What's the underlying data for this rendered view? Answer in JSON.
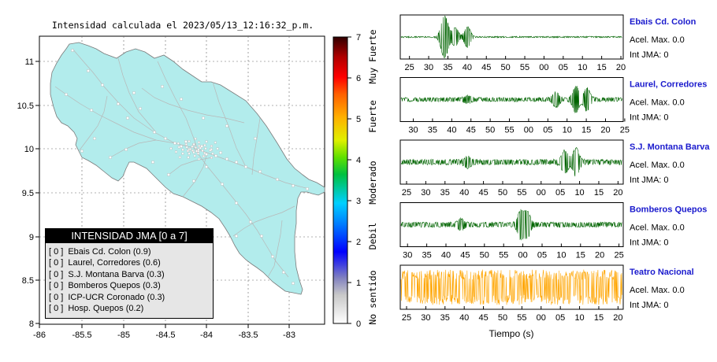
{
  "map": {
    "title": "Intensidad calculada el 2023/05/13_12:16:32_p.m.",
    "lon_ticks": [
      "-86",
      "-85.5",
      "-85",
      "-84.5",
      "-84",
      "-83.5",
      "-83"
    ],
    "lat_ticks": [
      "11",
      "10.5",
      "10",
      "9.5",
      "9",
      "8.5",
      "8"
    ],
    "land_color": "#b2ecec",
    "road_color": "#b8b8b8"
  },
  "legend": {
    "title": "INTENSIDAD JMA [0 a 7]",
    "items": [
      {
        "badge": "[ 0 ]",
        "label": "Ebais Cd. Colon (0.9)"
      },
      {
        "badge": "[ 0 ]",
        "label": "Laurel, Corredores (0.6)"
      },
      {
        "badge": "[ 0 ]",
        "label": "S.J. Montana Barva (0.3)"
      },
      {
        "badge": "[ 0 ]",
        "label": "Bomberos Quepos (0.3)"
      },
      {
        "badge": "[ 0 ]",
        "label": "ICP-UCR Coronado (0.3)"
      },
      {
        "badge": "[ 0 ]",
        "label": "Hosp. Quepos (0.2)"
      }
    ]
  },
  "scale": {
    "ticks": [
      "0",
      "1",
      "2",
      "3",
      "4",
      "5",
      "6",
      "7"
    ],
    "words": [
      "No sentido",
      "Debil",
      "Moderado",
      "Fuerte",
      "Muy Fuerte"
    ]
  },
  "stations": [
    {
      "name": "Ebais Cd. Colon",
      "acel": "Acel. Max. 0.0",
      "int": "Int JMA: 0",
      "ticks": [
        "25",
        "30",
        "35",
        "40",
        "45",
        "50",
        "55",
        "00",
        "05",
        "10",
        "15",
        "20"
      ],
      "first_offset": 0.15,
      "color": "#006400",
      "bursts": [
        [
          0.19,
          0.6
        ],
        [
          0.205,
          0.5
        ],
        [
          0.245,
          0.4
        ],
        [
          0.3,
          0.45
        ]
      ],
      "noise": 0.02,
      "base": 0.012
    },
    {
      "name": "Laurel, Corredores",
      "acel": "Acel. Max. 0.0",
      "int": "Int JMA: 0",
      "ticks": [
        "30",
        "35",
        "40",
        "45",
        "50",
        "55",
        "00",
        "05",
        "10",
        "15",
        "20",
        "25"
      ],
      "first_offset": 0.35,
      "color": "#006400",
      "bursts": [
        [
          0.3,
          0.12
        ],
        [
          0.7,
          0.28
        ],
        [
          0.79,
          0.55
        ],
        [
          0.84,
          0.45
        ]
      ],
      "noise": 0.06,
      "base": 0.04
    },
    {
      "name": "S.J. Montana Barva",
      "acel": "Acel. Max. 0.0",
      "int": "Int JMA: 0",
      "ticks": [
        "25",
        "30",
        "35",
        "40",
        "45",
        "50",
        "55",
        "00",
        "05",
        "10",
        "15",
        "20"
      ],
      "first_offset": 0.0,
      "color": "#006400",
      "bursts": [
        [
          0.3,
          0.18
        ],
        [
          0.74,
          0.45
        ],
        [
          0.79,
          0.55
        ]
      ],
      "noise": 0.08,
      "base": 0.05
    },
    {
      "name": "Bomberos Quepos",
      "acel": "Acel. Max. 0.0",
      "int": "Int JMA: 0",
      "ticks": [
        "30",
        "35",
        "40",
        "45",
        "50",
        "55",
        "00",
        "05",
        "10",
        "15",
        "20",
        "25"
      ],
      "first_offset": 0.05,
      "color": "#006400",
      "bursts": [
        [
          0.27,
          0.2
        ],
        [
          0.54,
          0.55
        ],
        [
          0.57,
          0.5
        ]
      ],
      "noise": 0.07,
      "base": 0.05
    },
    {
      "name": "Teatro Nacional",
      "acel": "Acel. Max. 0.0",
      "int": "Int JMA: 0",
      "ticks": [
        "25",
        "30",
        "35",
        "40",
        "45",
        "50",
        "55",
        "00",
        "05",
        "10",
        "15",
        "20"
      ],
      "first_offset": 0.0,
      "color": "#ffa500",
      "bursts": [],
      "noise": 0.45,
      "base": 0.35
    }
  ],
  "xlabel": "Tiempo (s)"
}
